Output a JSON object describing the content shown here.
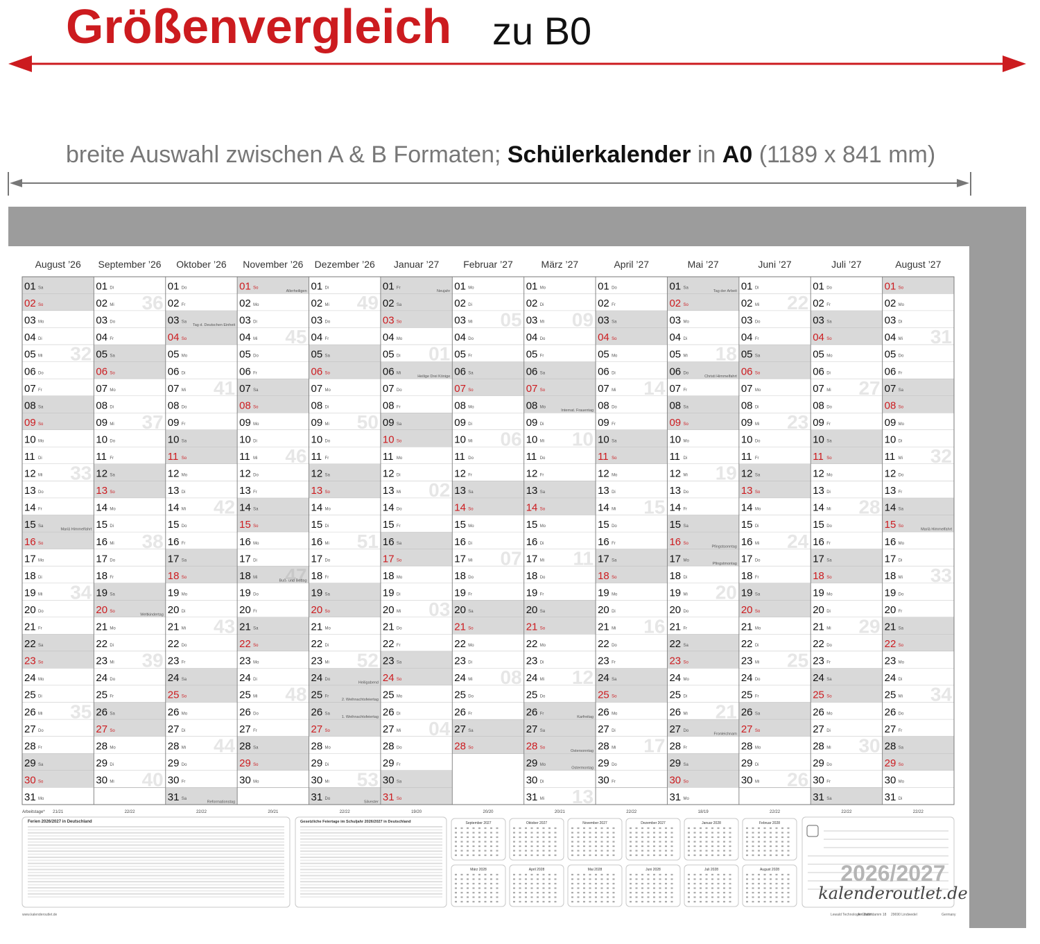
{
  "header": {
    "title": "Größenvergleich",
    "title_suffix": "zu B0",
    "subtitle": [
      {
        "text": "breite Auswahl zwischen A & B Formaten; ",
        "bold": false
      },
      {
        "text": "Schülerkalender",
        "bold": true
      },
      {
        "text": " in ",
        "bold": false
      },
      {
        "text": "A0",
        "bold": true
      },
      {
        "text": " (1189 x 841 mm)",
        "bold": false
      }
    ]
  },
  "calendar": {
    "day_numbers": [
      "01",
      "02",
      "03",
      "04",
      "05",
      "06",
      "07",
      "08",
      "09",
      "10",
      "11",
      "12",
      "13",
      "14",
      "15",
      "16",
      "17",
      "18",
      "19",
      "20",
      "21",
      "22",
      "23",
      "24",
      "25",
      "26",
      "27",
      "28",
      "29",
      "30",
      "31"
    ],
    "shade_weekdays": [
      "Sa",
      "So"
    ],
    "red_weekdays": [
      "So"
    ],
    "workdays_label": "Arbeitstage*",
    "months": [
      {
        "name": "August ’26",
        "workdays": "21/21",
        "weekdays": [
          "Sa",
          "So",
          "Mo",
          "Di",
          "Mi",
          "Do",
          "Fr",
          "Sa",
          "So",
          "Mo",
          "Di",
          "Mi",
          "Do",
          "Fr",
          "Sa",
          "So",
          "Mo",
          "Di",
          "Mi",
          "Do",
          "Fr",
          "Sa",
          "So",
          "Mo",
          "Di",
          "Mi",
          "Do",
          "Fr",
          "Sa",
          "So",
          "Mo"
        ],
        "weeks": {
          "4": "32",
          "11": "33",
          "18": "34",
          "25": "35"
        },
        "notes": {
          "14": "Mariä Himmelfahrt"
        }
      },
      {
        "name": "September ’26",
        "workdays": "22/22",
        "weekdays": [
          "Di",
          "Mi",
          "Do",
          "Fr",
          "Sa",
          "So",
          "Mo",
          "Di",
          "Mi",
          "Do",
          "Fr",
          "Sa",
          "So",
          "Mo",
          "Di",
          "Mi",
          "Do",
          "Fr",
          "Sa",
          "So",
          "Mo",
          "Di",
          "Mi",
          "Do",
          "Fr",
          "Sa",
          "So",
          "Mo",
          "Di",
          "Mi"
        ],
        "weeks": {
          "1": "36",
          "8": "37",
          "15": "38",
          "22": "39",
          "29": "40"
        },
        "notes": {
          "19": "Weltkindertag"
        }
      },
      {
        "name": "Oktober ’26",
        "workdays": "22/22",
        "weekdays": [
          "Do",
          "Fr",
          "Sa",
          "So",
          "Mo",
          "Di",
          "Mi",
          "Do",
          "Fr",
          "Sa",
          "So",
          "Mo",
          "Di",
          "Mi",
          "Do",
          "Fr",
          "Sa",
          "So",
          "Mo",
          "Di",
          "Mi",
          "Do",
          "Fr",
          "Sa",
          "So",
          "Mo",
          "Di",
          "Mi",
          "Do",
          "Fr",
          "Sa"
        ],
        "weeks": {
          "6": "41",
          "13": "42",
          "20": "43",
          "27": "44"
        },
        "notes": {
          "2": "Tag d. Deutschen Einheit",
          "30": "Reformationstag"
        }
      },
      {
        "name": "November ’26",
        "workdays": "20/21",
        "weekdays": [
          "So",
          "Mo",
          "Di",
          "Mi",
          "Do",
          "Fr",
          "Sa",
          "So",
          "Mo",
          "Di",
          "Mi",
          "Do",
          "Fr",
          "Sa",
          "So",
          "Mo",
          "Di",
          "Mi",
          "Do",
          "Fr",
          "Sa",
          "So",
          "Mo",
          "Di",
          "Mi",
          "Do",
          "Fr",
          "Sa",
          "So",
          "Mo"
        ],
        "weeks": {
          "3": "45",
          "10": "46",
          "17": "47",
          "24": "48"
        },
        "notes": {
          "0": "Allerheiligen",
          "17": "Buß- und Bettag"
        }
      },
      {
        "name": "Dezember ’26",
        "workdays": "22/22",
        "weekdays": [
          "Di",
          "Mi",
          "Do",
          "Fr",
          "Sa",
          "So",
          "Mo",
          "Di",
          "Mi",
          "Do",
          "Fr",
          "Sa",
          "So",
          "Mo",
          "Di",
          "Mi",
          "Do",
          "Fr",
          "Sa",
          "So",
          "Mo",
          "Di",
          "Mi",
          "Do",
          "Fr",
          "Sa",
          "So",
          "Mo",
          "Di",
          "Mi",
          "Do"
        ],
        "weeks": {
          "1": "49",
          "8": "50",
          "15": "51",
          "22": "52",
          "29": "53"
        },
        "notes": {
          "23": "Heiligabend",
          "24": "2. Weihnachtsfeiertag",
          "25": "1. Weihnachtsfeiertag",
          "30": "Silvester"
        }
      },
      {
        "name": "Januar ’27",
        "workdays": "19/20",
        "weekdays": [
          "Fr",
          "Sa",
          "So",
          "Mo",
          "Di",
          "Mi",
          "Do",
          "Fr",
          "Sa",
          "So",
          "Mo",
          "Di",
          "Mi",
          "Do",
          "Fr",
          "Sa",
          "So",
          "Mo",
          "Di",
          "Mi",
          "Do",
          "Fr",
          "Sa",
          "So",
          "Mo",
          "Di",
          "Mi",
          "Do",
          "Fr",
          "Sa",
          "So"
        ],
        "weeks": {
          "4": "01",
          "12": "02",
          "19": "03",
          "26": "04"
        },
        "notes": {
          "0": "Neujahr",
          "5": "Heilige Drei Könige"
        }
      },
      {
        "name": "Februar ’27",
        "workdays": "20/20",
        "weekdays": [
          "Mo",
          "Di",
          "Mi",
          "Do",
          "Fr",
          "Sa",
          "So",
          "Mo",
          "Di",
          "Mi",
          "Do",
          "Fr",
          "Sa",
          "So",
          "Mo",
          "Di",
          "Mi",
          "Do",
          "Fr",
          "Sa",
          "So",
          "Mo",
          "Di",
          "Mi",
          "Do",
          "Fr",
          "Sa",
          "So"
        ],
        "weeks": {
          "2": "05",
          "9": "06",
          "16": "07",
          "23": "08"
        },
        "notes": {}
      },
      {
        "name": "März ’27",
        "workdays": "20/21",
        "weekdays": [
          "Mo",
          "Di",
          "Mi",
          "Do",
          "Fr",
          "Sa",
          "So",
          "Mo",
          "Di",
          "Mi",
          "Do",
          "Fr",
          "Sa",
          "So",
          "Mo",
          "Di",
          "Mi",
          "Do",
          "Fr",
          "Sa",
          "So",
          "Mo",
          "Di",
          "Mi",
          "Do",
          "Fr",
          "Sa",
          "So",
          "Mo",
          "Di",
          "Mi"
        ],
        "weeks": {
          "2": "09",
          "9": "10",
          "16": "11",
          "23": "12",
          "30": "13"
        },
        "notes": {
          "7": "Internat. Frauentag",
          "25": "Karfreitag",
          "27": "Ostersonntag",
          "28": "Ostermontag"
        }
      },
      {
        "name": "April ’27",
        "workdays": "22/22",
        "weekdays": [
          "Do",
          "Fr",
          "Sa",
          "So",
          "Mo",
          "Di",
          "Mi",
          "Do",
          "Fr",
          "Sa",
          "So",
          "Mo",
          "Di",
          "Mi",
          "Do",
          "Fr",
          "Sa",
          "So",
          "Mo",
          "Di",
          "Mi",
          "Do",
          "Fr",
          "Sa",
          "So",
          "Mo",
          "Di",
          "Mi",
          "Do",
          "Fr"
        ],
        "weeks": {
          "6": "14",
          "13": "15",
          "20": "16",
          "27": "17"
        },
        "notes": {}
      },
      {
        "name": "Mai ’27",
        "workdays": "18/19",
        "weekdays": [
          "Sa",
          "So",
          "Mo",
          "Di",
          "Mi",
          "Do",
          "Fr",
          "Sa",
          "So",
          "Mo",
          "Di",
          "Mi",
          "Do",
          "Fr",
          "Sa",
          "So",
          "Mo",
          "Di",
          "Mi",
          "Do",
          "Fr",
          "Sa",
          "So",
          "Mo",
          "Di",
          "Mi",
          "Do",
          "Fr",
          "Sa",
          "So",
          "Mo"
        ],
        "weeks": {
          "4": "18",
          "11": "19",
          "18": "20",
          "25": "21"
        },
        "notes": {
          "0": "Tag der Arbeit",
          "5": "Christi Himmelfahrt",
          "15": "Pfingstsonntag",
          "16": "Pfingstmontag",
          "26": "Fronleichnam"
        }
      },
      {
        "name": "Juni ’27",
        "workdays": "22/22",
        "weekdays": [
          "Di",
          "Mi",
          "Do",
          "Fr",
          "Sa",
          "So",
          "Mo",
          "Di",
          "Mi",
          "Do",
          "Fr",
          "Sa",
          "So",
          "Mo",
          "Di",
          "Mi",
          "Do",
          "Fr",
          "Sa",
          "So",
          "Mo",
          "Di",
          "Mi",
          "Do",
          "Fr",
          "Sa",
          "So",
          "Mo",
          "Di",
          "Mi"
        ],
        "weeks": {
          "1": "22",
          "8": "23",
          "15": "24",
          "22": "25",
          "29": "26"
        },
        "notes": {}
      },
      {
        "name": "Juli ’27",
        "workdays": "22/22",
        "weekdays": [
          "Do",
          "Fr",
          "Sa",
          "So",
          "Mo",
          "Di",
          "Mi",
          "Do",
          "Fr",
          "Sa",
          "So",
          "Mo",
          "Di",
          "Mi",
          "Do",
          "Fr",
          "Sa",
          "So",
          "Mo",
          "Di",
          "Mi",
          "Do",
          "Fr",
          "Sa",
          "So",
          "Mo",
          "Di",
          "Mi",
          "Do",
          "Fr",
          "Sa"
        ],
        "weeks": {
          "6": "27",
          "13": "28",
          "20": "29",
          "27": "30"
        },
        "notes": {}
      },
      {
        "name": "August ’27",
        "workdays": "22/22",
        "weekdays": [
          "So",
          "Mo",
          "Di",
          "Mi",
          "Do",
          "Fr",
          "Sa",
          "So",
          "Mo",
          "Di",
          "Mi",
          "Do",
          "Fr",
          "Sa",
          "So",
          "Mo",
          "Di",
          "Mi",
          "Do",
          "Fr",
          "Sa",
          "So",
          "Mo",
          "Di",
          "Mi",
          "Do",
          "Fr",
          "Sa",
          "So",
          "Mo",
          "Di"
        ],
        "weeks": {
          "3": "31",
          "10": "32",
          "17": "33",
          "24": "34"
        },
        "notes": {
          "14": "Mariä Himmelfahrt"
        }
      }
    ]
  },
  "footer": {
    "holidays_title": "Ferien 2026/2027 in Deutschland",
    "public_holidays_title": "Gesetzliche Feiertage im Schuljahr 2026/2027 in Deutschland",
    "mini_calendars": [
      "September 2027",
      "Oktober 2027",
      "November 2027",
      "Dezember 2027",
      "Januar 2028",
      "Februar 2028",
      "März 2028",
      "April 2028",
      "Mai 2028",
      "Juni 2028",
      "Juli 2028",
      "August 2028"
    ],
    "logo_year": "2026/2027",
    "logo_site": "kalenderoutlet.de",
    "imprint": [
      "www.kalenderoutlet.de",
      "Lewald Technologie GmbH",
      "Am Bahndamm 18",
      "29690 Lindwedel",
      "Germany"
    ]
  }
}
